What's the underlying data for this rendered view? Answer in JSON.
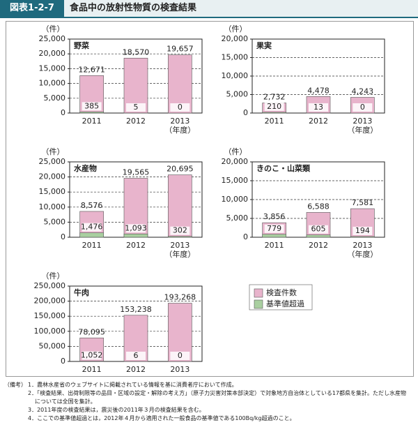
{
  "header": {
    "figure_number": "図表1-2-7",
    "title": "食品中の放射性物質の検査結果"
  },
  "legend": {
    "entries": [
      {
        "name": "検査件数",
        "color": "#e8b4cc"
      },
      {
        "name": "基準値超過",
        "color": "#a9cfa0"
      }
    ]
  },
  "chart_data": [
    {
      "type": "bar",
      "title": "野菜",
      "y_label": "（件）",
      "x_label": "（年度）",
      "categories": [
        "2011",
        "2012",
        "2013"
      ],
      "series": [
        {
          "color": "#e8b4cc",
          "values": [
            12671,
            18570,
            19657
          ],
          "value_labels": [
            "12,671",
            "18,570",
            "19,657"
          ]
        },
        {
          "color": "#a9cfa0",
          "values": [
            385,
            5,
            0
          ],
          "value_labels": [
            "385",
            "5",
            "0"
          ]
        }
      ],
      "ylim": [
        0,
        25000
      ],
      "yticks": [
        0,
        {
          "value": 5000,
          "label": "5,000"
        },
        {
          "value": 10000,
          "label": "10,000"
        },
        {
          "value": 15000,
          "label": "15,000"
        },
        {
          "value": 20000,
          "label": "20,000"
        },
        {
          "value": 25000,
          "label": "25,000"
        }
      ],
      "grid": true
    },
    {
      "type": "bar",
      "title": "果実",
      "y_label": "（件）",
      "x_label": "（年度）",
      "categories": [
        "2011",
        "2012",
        "2013"
      ],
      "series": [
        {
          "color": "#e8b4cc",
          "values": [
            2732,
            4478,
            4243
          ],
          "value_labels": [
            "2,732",
            "4,478",
            "4,243"
          ]
        },
        {
          "color": "#a9cfa0",
          "values": [
            210,
            13,
            0
          ],
          "value_labels": [
            "210",
            "13",
            "0"
          ]
        }
      ],
      "ylim": [
        0,
        20000
      ],
      "yticks": [
        0,
        {
          "value": 5000,
          "label": "5,000"
        },
        {
          "value": 10000,
          "label": "10,000"
        },
        {
          "value": 15000,
          "label": "15,000"
        },
        {
          "value": 20000,
          "label": "20,000"
        }
      ],
      "grid": true
    },
    {
      "type": "bar",
      "title": "水産物",
      "y_label": "（件）",
      "x_label": "（年度）",
      "categories": [
        "2011",
        "2012",
        "2013"
      ],
      "series": [
        {
          "color": "#e8b4cc",
          "values": [
            8576,
            19565,
            20695
          ],
          "value_labels": [
            "8,576",
            "19,565",
            "20,695"
          ]
        },
        {
          "color": "#a9cfa0",
          "values": [
            1476,
            1093,
            302
          ],
          "value_labels": [
            "1,476",
            "1,093",
            "302"
          ]
        }
      ],
      "ylim": [
        0,
        25000
      ],
      "yticks": [
        0,
        {
          "value": 5000,
          "label": "5,000"
        },
        {
          "value": 10000,
          "label": "10,000"
        },
        {
          "value": 15000,
          "label": "15,000"
        },
        {
          "value": 20000,
          "label": "20,000"
        },
        {
          "value": 25000,
          "label": "25,000"
        }
      ],
      "grid": true
    },
    {
      "type": "bar",
      "title": "きのこ・山菜類",
      "y_label": "（件）",
      "x_label": "（年度）",
      "categories": [
        "2011",
        "2012",
        "2013"
      ],
      "series": [
        {
          "color": "#e8b4cc",
          "values": [
            3856,
            6588,
            7581
          ],
          "value_labels": [
            "3,856",
            "6,588",
            "7,581"
          ]
        },
        {
          "color": "#a9cfa0",
          "values": [
            779,
            605,
            194
          ],
          "value_labels": [
            "779",
            "605",
            "194"
          ]
        }
      ],
      "ylim": [
        0,
        20000
      ],
      "yticks": [
        0,
        {
          "value": 5000,
          "label": "5,000"
        },
        {
          "value": 10000,
          "label": "10,000"
        },
        {
          "value": 15000,
          "label": "15,000"
        },
        {
          "value": 20000,
          "label": "20,000"
        }
      ],
      "grid": true
    },
    {
      "type": "bar",
      "title": "牛肉",
      "y_label": "（件）",
      "categories": [
        "2011",
        "2012",
        "2013"
      ],
      "series": [
        {
          "color": "#e8b4cc",
          "values": [
            78095,
            153238,
            193268
          ],
          "value_labels": [
            "78,095",
            "153,238",
            "193,268"
          ]
        },
        {
          "color": "#a9cfa0",
          "values": [
            1052,
            6,
            0
          ],
          "value_labels": [
            "1,052",
            "6",
            "0"
          ]
        }
      ],
      "ylim": [
        0,
        250000
      ],
      "yticks": [
        0,
        {
          "value": 50000,
          "label": "50,000"
        },
        {
          "value": 100000,
          "label": "100,000"
        },
        {
          "value": 150000,
          "label": "150,000"
        },
        {
          "value": 200000,
          "label": "200,000"
        },
        {
          "value": 250000,
          "label": "250,000"
        }
      ],
      "grid": true
    }
  ],
  "notes": {
    "label": "（備考）",
    "items": [
      "1．農林水産省のウェブサイトに掲載されている情報を基に消費者庁において作成。",
      "2．「検査結果、出荷制限等の品目・区域の設定・解除の考え方」（原子力災害対策本部決定）で対象地方自治体としている17都県を集計。ただし水産物については全国を集計。",
      "3．2011年度の検査結果は，震災後の2011年３月の検査結果を含む。",
      "4．ここでの基準値超過とは，2012年４月から適用された一般食品の基準値である100Bq/kg超過のこと。"
    ]
  }
}
